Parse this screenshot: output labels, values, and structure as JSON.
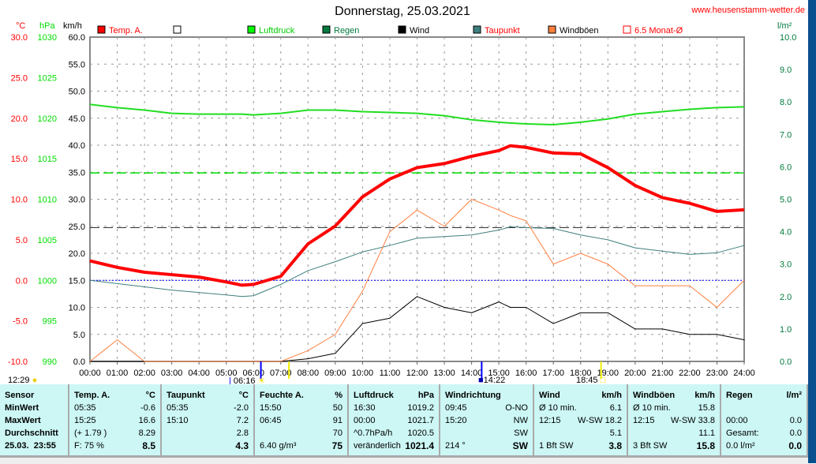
{
  "header": {
    "title": "Donnerstag, 25.03.2021",
    "url": "www.heusenstamm-wetter.de"
  },
  "axes": {
    "temp_unit": "°C",
    "pressure_unit": "hPa",
    "wind_unit": "km/h",
    "rain_unit": "l/m²",
    "temp_ticks": [
      "30.0",
      "25.0",
      "20.0",
      "15.0",
      "10.0",
      "5.0",
      "0.0",
      "-5.0",
      "-10.0"
    ],
    "pressure_ticks": [
      "1030",
      "1025",
      "1020",
      "1015",
      "1010",
      "1005",
      "1000",
      "995",
      "990"
    ],
    "wind_ticks": [
      "60.0",
      "55.0",
      "50.0",
      "45.0",
      "40.0",
      "35.0",
      "30.0",
      "25.0",
      "20.0",
      "15.0",
      "10.0",
      "5.0",
      "0.0"
    ],
    "rain_ticks": [
      "10.0",
      "9.0",
      "8.0",
      "7.0",
      "6.0",
      "5.0",
      "4.0",
      "3.0",
      "2.0",
      "1.0",
      "0.0"
    ],
    "time_ticks": [
      "00:00",
      "01:00",
      "02:00",
      "03:00",
      "04:00",
      "05:00",
      "06:00",
      "07:00",
      "08:00",
      "09:00",
      "10:00",
      "11:00",
      "12:00",
      "13:00",
      "14:00",
      "15:00",
      "16:00",
      "17:00",
      "18:00",
      "19:00",
      "20:00",
      "21:00",
      "22:00",
      "23:00",
      "24:00"
    ]
  },
  "legend": [
    {
      "label": "Temp. A.",
      "color": "#ff0000"
    },
    {
      "label": "",
      "color": "#ffffff"
    },
    {
      "label": "Luftdruck",
      "color": "#00ff00"
    },
    {
      "label": "Regen",
      "color": "#007a3d"
    },
    {
      "label": "Wind",
      "color": "#000000"
    },
    {
      "label": "Taupunkt",
      "color": "#3f7f7f"
    },
    {
      "label": "Windböen",
      "color": "#ff7f3f"
    },
    {
      "label": "6.5 Monat-Ø",
      "color": "#ff0000"
    }
  ],
  "sun": {
    "moonrise": "12:29",
    "sunrise": "06:16",
    "moonset": "14:22",
    "sunset": "18:45"
  },
  "chart_data": {
    "type": "line",
    "title": "Donnerstag, 25.03.2021",
    "xlabel": "time",
    "x_hours": [
      0,
      1,
      2,
      3,
      4,
      5,
      5.58,
      6,
      7,
      8,
      9,
      10,
      11,
      12,
      13,
      14,
      15,
      15.42,
      16,
      17,
      18,
      19,
      20,
      21,
      22,
      23,
      24
    ],
    "series": [
      {
        "name": "Temp. A.",
        "unit": "°C",
        "ylim": [
          -10,
          30
        ],
        "values": [
          2.4,
          1.6,
          1.0,
          0.7,
          0.4,
          -0.2,
          -0.6,
          -0.5,
          0.5,
          4.5,
          6.7,
          10.3,
          12.5,
          13.9,
          14.4,
          15.3,
          16.0,
          16.6,
          16.4,
          15.7,
          15.6,
          13.9,
          11.7,
          10.2,
          9.5,
          8.5,
          8.7
        ]
      },
      {
        "name": "Luftdruck",
        "unit": "hPa",
        "ylim": [
          990,
          1030
        ],
        "values": [
          1021.7,
          1021.3,
          1021.0,
          1020.6,
          1020.5,
          1020.5,
          1020.5,
          1020.4,
          1020.6,
          1021.0,
          1021.0,
          1020.8,
          1020.7,
          1020.6,
          1020.3,
          1019.8,
          1019.5,
          1019.4,
          1019.3,
          1019.2,
          1019.5,
          1019.9,
          1020.5,
          1020.8,
          1021.1,
          1021.3,
          1021.4
        ]
      },
      {
        "name": "Taupunkt",
        "unit": "°C",
        "ylim": [
          -10,
          30
        ],
        "values": [
          0.0,
          -0.4,
          -0.8,
          -1.2,
          -1.5,
          -1.8,
          -2.0,
          -1.9,
          -0.5,
          1.2,
          2.3,
          3.5,
          4.3,
          5.2,
          5.4,
          5.6,
          6.2,
          6.6,
          6.5,
          6.4,
          5.6,
          5.0,
          4.0,
          3.6,
          3.2,
          3.4,
          4.3
        ]
      },
      {
        "name": "Wind",
        "unit": "km/h",
        "ylim": [
          0,
          60
        ],
        "values": [
          0,
          0,
          0,
          0,
          0,
          0,
          0,
          0,
          0,
          0.5,
          1.5,
          7,
          8,
          12,
          10,
          9,
          11,
          10,
          10,
          7,
          9,
          9,
          6,
          6,
          5,
          5,
          4
        ]
      },
      {
        "name": "Windböen",
        "unit": "km/h",
        "ylim": [
          0,
          60
        ],
        "values": [
          0,
          4,
          0,
          0,
          0,
          0,
          0,
          0,
          0,
          2,
          5,
          13,
          24,
          28,
          25,
          30,
          28,
          27,
          26,
          18,
          20,
          18,
          14,
          14,
          14,
          10,
          15
        ]
      }
    ],
    "reference_lines": [
      {
        "name": "1013.25 hPa",
        "value": 1013.25
      },
      {
        "name": "6.5 Monat-Ø",
        "value": 6.5
      },
      {
        "name": "0 °C",
        "value": 0
      }
    ]
  },
  "table": {
    "sensor": {
      "h": "Sensor",
      "r": [
        "MinWert",
        "MaxWert",
        "Durchschnitt",
        "25.03.  23:55"
      ]
    },
    "temp": {
      "h": "Temp. A.",
      "u": "°C",
      "r": [
        [
          "05:35",
          "-0.6"
        ],
        [
          "15:25",
          "16.6"
        ],
        [
          "(+ 1.79 )",
          "8.29"
        ],
        [
          "F: 75 %",
          "8.5"
        ]
      ]
    },
    "dew": {
      "h": "Taupunkt",
      "u": "°C",
      "r": [
        [
          "05:35",
          "-2.0"
        ],
        [
          "15:10",
          "7.2"
        ],
        [
          "",
          "2.8"
        ],
        [
          "",
          "4.3"
        ]
      ]
    },
    "hum": {
      "h": "Feuchte A.",
      "u": "%",
      "r": [
        [
          "15:50",
          "50"
        ],
        [
          "06:45",
          "91"
        ],
        [
          "",
          "70"
        ],
        [
          "6.40 g/m³",
          "75"
        ]
      ]
    },
    "press": {
      "h": "Luftdruck",
      "u": "hPa",
      "r": [
        [
          "16:30",
          "1019.2"
        ],
        [
          "00:00",
          "1021.7"
        ],
        [
          "^0.7hPa/h",
          "1020.5"
        ],
        [
          "veränderlich",
          "1021.4"
        ]
      ]
    },
    "dir": {
      "h": "Windrichtung",
      "u": "",
      "r": [
        [
          "09:45",
          "O-NO"
        ],
        [
          "15:20",
          "NW"
        ],
        [
          "",
          "SW"
        ],
        [
          "214 °",
          "SW"
        ]
      ]
    },
    "wind": {
      "h": "Wind",
      "u": "km/h",
      "r": [
        [
          "Ø 10 min.",
          "6.1"
        ],
        [
          "12:15",
          "W-SW 18.2"
        ],
        [
          "",
          "5.1"
        ],
        [
          "1 Bft SW",
          "3.8"
        ]
      ]
    },
    "gust": {
      "h": "Windböen",
      "u": "km/h",
      "r": [
        [
          "Ø 10 min.",
          "15.8"
        ],
        [
          "12:15",
          "W-SW 33.8"
        ],
        [
          "",
          "11.1"
        ],
        [
          "3 Bft SW",
          "15.8"
        ]
      ]
    },
    "rain": {
      "h": "Regen",
      "u": "l/m²",
      "r": [
        [
          "",
          ""
        ],
        [
          "00:00",
          "0.0"
        ],
        [
          "Gesamt:",
          "0.0"
        ],
        [
          "0.0 l/m²",
          "0.0"
        ]
      ]
    }
  }
}
